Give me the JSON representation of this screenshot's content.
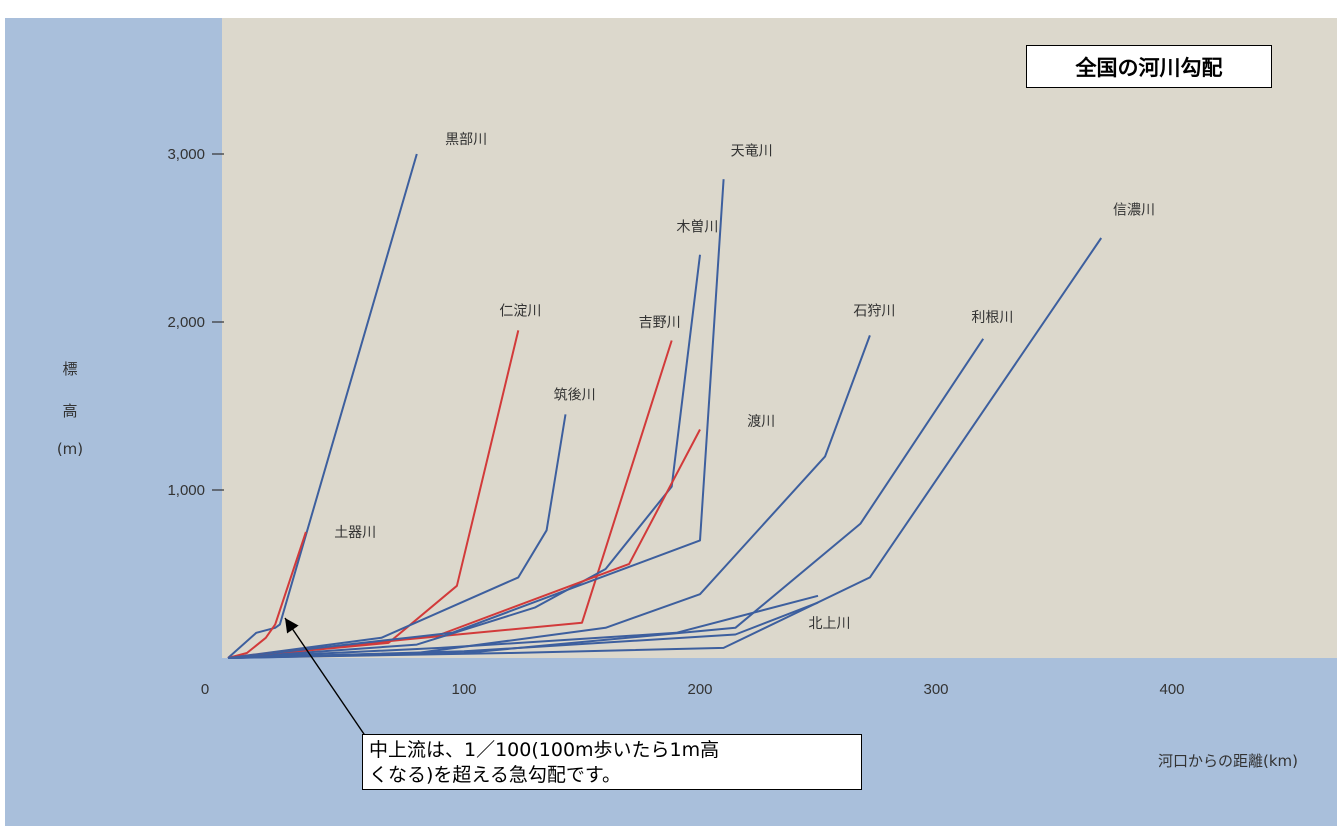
{
  "title": "全国の河川勾配",
  "note_line1": "中上流は、1／100(100m歩いたら1m高",
  "note_line2": "くなる)を超える急勾配です。",
  "ylabel_chars": [
    "標",
    "高",
    "(m)"
  ],
  "xlabel": "河口からの距離(km)",
  "colors": {
    "plot_bg": "#dcd8cc",
    "frame": "#a9bfdb",
    "blue_line": "#3d5f9e",
    "red_line": "#d23a3a"
  },
  "chart_data": {
    "type": "line",
    "title": "全国の河川勾配",
    "xlabel": "河口からの距離(km)",
    "ylabel": "標高(m)",
    "xlim": [
      0,
      470
    ],
    "ylim": [
      0,
      3600
    ],
    "x_ticks": [
      0,
      100,
      200,
      300,
      400
    ],
    "x_tick_labels": [
      "0",
      "100",
      "200",
      "300",
      "400"
    ],
    "y_ticks": [
      1000,
      2000,
      3000
    ],
    "y_tick_labels": [
      "1,000",
      "2,000",
      "3,000"
    ],
    "grid": false,
    "series": [
      {
        "name": "黒部川",
        "color": "blue",
        "points": [
          [
            0,
            0
          ],
          [
            12,
            150
          ],
          [
            20,
            180
          ],
          [
            22,
            200
          ],
          [
            80,
            3000
          ]
        ]
      },
      {
        "name": "土器川",
        "color": "red",
        "points": [
          [
            0,
            0
          ],
          [
            8,
            30
          ],
          [
            16,
            120
          ],
          [
            20,
            200
          ],
          [
            33,
            750
          ]
        ]
      },
      {
        "name": "仁淀川",
        "color": "red",
        "points": [
          [
            0,
            0
          ],
          [
            68,
            90
          ],
          [
            97,
            430
          ],
          [
            123,
            1950
          ]
        ]
      },
      {
        "name": "筑後川",
        "color": "blue",
        "points": [
          [
            0,
            0
          ],
          [
            65,
            120
          ],
          [
            123,
            480
          ],
          [
            135,
            760
          ],
          [
            143,
            1450
          ]
        ]
      },
      {
        "name": "吉野川",
        "color": "red",
        "points": [
          [
            0,
            0
          ],
          [
            75,
            110
          ],
          [
            150,
            210
          ],
          [
            188,
            1890
          ]
        ]
      },
      {
        "name": "木曽川",
        "color": "blue",
        "points": [
          [
            0,
            0
          ],
          [
            80,
            80
          ],
          [
            130,
            300
          ],
          [
            160,
            530
          ],
          [
            188,
            1020
          ],
          [
            200,
            2400
          ]
        ]
      },
      {
        "name": "渡川",
        "color": "red",
        "points": [
          [
            0,
            0
          ],
          [
            90,
            140
          ],
          [
            170,
            560
          ],
          [
            200,
            1360
          ]
        ]
      },
      {
        "name": "天竜川",
        "color": "blue",
        "points": [
          [
            0,
            0
          ],
          [
            95,
            150
          ],
          [
            200,
            700
          ],
          [
            210,
            2850
          ]
        ]
      },
      {
        "name": "石狩川",
        "color": "blue",
        "points": [
          [
            0,
            0
          ],
          [
            80,
            30
          ],
          [
            160,
            180
          ],
          [
            200,
            380
          ],
          [
            253,
            1200
          ],
          [
            272,
            1920
          ]
        ]
      },
      {
        "name": "利根川",
        "color": "blue",
        "points": [
          [
            0,
            0
          ],
          [
            100,
            30
          ],
          [
            215,
            180
          ],
          [
            268,
            800
          ],
          [
            320,
            1900
          ]
        ]
      },
      {
        "name": "信濃川",
        "color": "blue",
        "points": [
          [
            0,
            0
          ],
          [
            120,
            30
          ],
          [
            210,
            60
          ],
          [
            272,
            480
          ],
          [
            370,
            2500
          ]
        ]
      },
      {
        "name": "北上川",
        "color": "blue",
        "points": [
          [
            0,
            0
          ],
          [
            100,
            40
          ],
          [
            215,
            140
          ],
          [
            250,
            330
          ]
        ]
      },
      {
        "name": "",
        "color": "blue",
        "points": [
          [
            0,
            0
          ],
          [
            90,
            60
          ],
          [
            190,
            150
          ],
          [
            250,
            370
          ]
        ]
      }
    ],
    "labels": [
      {
        "text": "黒部川",
        "x": 92,
        "y": 3060
      },
      {
        "text": "天竜川",
        "x": 213,
        "y": 2990
      },
      {
        "text": "木曽川",
        "x": 190,
        "y": 2540
      },
      {
        "text": "信濃川",
        "x": 375,
        "y": 2640
      },
      {
        "text": "仁淀川",
        "x": 115,
        "y": 2040
      },
      {
        "text": "吉野川",
        "x": 174,
        "y": 1970
      },
      {
        "text": "石狩川",
        "x": 265,
        "y": 2040
      },
      {
        "text": "利根川",
        "x": 315,
        "y": 2000
      },
      {
        "text": "筑後川",
        "x": 138,
        "y": 1540
      },
      {
        "text": "渡川",
        "x": 220,
        "y": 1380
      },
      {
        "text": "土器川",
        "x": 45,
        "y": 720
      },
      {
        "text": "北上川",
        "x": 246,
        "y": 180
      }
    ]
  }
}
